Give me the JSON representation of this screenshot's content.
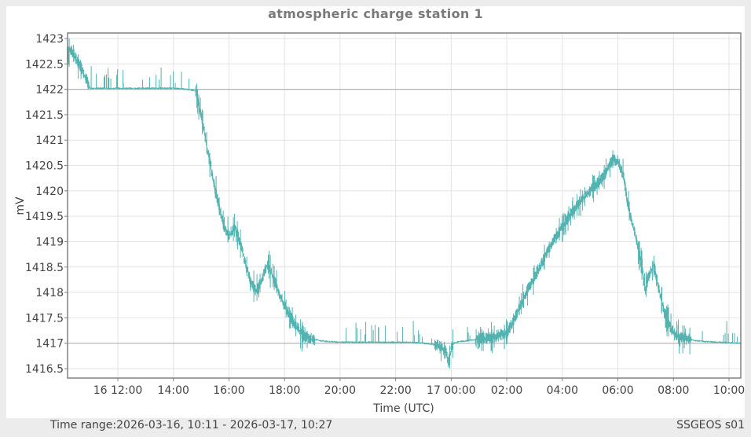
{
  "window": {
    "status_left": "Time range:2026-03-16, 10:11 - 2026-03-17, 10:27",
    "status_right": "SSGEOS s01"
  },
  "colors": {
    "series": "#52b3b0",
    "grid": "#e3e3e3",
    "axis": "#808080",
    "reference_line": "#b4b4b4",
    "title": "#7a7a7a"
  },
  "chart_data": {
    "type": "line",
    "title": "atmospheric charge station 1",
    "xlabel": "Time (UTC)",
    "ylabel": "mV",
    "ylim": [
      1416.3,
      1423.1
    ],
    "xlim_hours_from_0000_day16": [
      10.18,
      34.45
    ],
    "grid": true,
    "legend": null,
    "y_ticks": [
      "1423",
      "1422.5",
      "1422",
      "1421.5",
      "1421",
      "1420.5",
      "1420",
      "1419.5",
      "1419",
      "1418.5",
      "1418",
      "1417.5",
      "1417",
      "1416.5"
    ],
    "y_tick_values": [
      1423,
      1422.5,
      1422,
      1421.5,
      1421,
      1420.5,
      1420,
      1419.5,
      1419,
      1418.5,
      1418,
      1417.5,
      1417,
      1416.5
    ],
    "x_ticks": [
      "16 12:00",
      "14:00",
      "16:00",
      "18:00",
      "20:00",
      "22:00",
      "17 00:00",
      "02:00",
      "04:00",
      "06:00",
      "08:00",
      "10:00"
    ],
    "x_tick_hours": [
      12,
      14,
      16,
      18,
      20,
      22,
      24,
      26,
      28,
      30,
      32,
      34
    ],
    "reference_lines_y": [
      1422,
      1417
    ],
    "series": [
      {
        "name": "atmospheric charge station 1",
        "x_hours": [
          10.18,
          10.3,
          10.5,
          10.7,
          10.9,
          11.0,
          11.2,
          11.5,
          12.0,
          12.5,
          13.0,
          13.5,
          14.0,
          14.5,
          14.8,
          15.0,
          15.2,
          15.4,
          15.6,
          15.8,
          16.0,
          16.2,
          16.4,
          16.6,
          16.8,
          17.0,
          17.2,
          17.4,
          17.6,
          17.8,
          18.0,
          18.2,
          18.4,
          18.6,
          18.8,
          19.0,
          19.3,
          19.6,
          20.0,
          20.5,
          21.0,
          21.5,
          22.0,
          22.5,
          23.0,
          23.3,
          23.6,
          23.8,
          23.9,
          24.0,
          24.1,
          24.3,
          24.6,
          25.0,
          25.5,
          26.0,
          26.3,
          26.6,
          27.0,
          27.5,
          28.0,
          28.5,
          29.0,
          29.5,
          29.8,
          30.0,
          30.2,
          30.4,
          30.6,
          30.8,
          31.0,
          31.1,
          31.3,
          31.5,
          31.7,
          31.9,
          32.1,
          32.4,
          32.8,
          33.2,
          33.6,
          34.0,
          34.45
        ],
        "values": [
          1422.65,
          1422.8,
          1422.6,
          1422.4,
          1422.15,
          1422.02,
          1422.02,
          1422.02,
          1422.02,
          1422.02,
          1422.02,
          1422.02,
          1422.02,
          1422.0,
          1421.97,
          1421.5,
          1420.9,
          1420.3,
          1419.8,
          1419.35,
          1419.1,
          1419.3,
          1419.0,
          1418.55,
          1418.2,
          1418.0,
          1418.3,
          1418.55,
          1418.3,
          1418.0,
          1417.75,
          1417.55,
          1417.35,
          1417.2,
          1417.12,
          1417.08,
          1417.05,
          1417.03,
          1417.02,
          1417.02,
          1417.02,
          1417.02,
          1417.02,
          1417.02,
          1417.0,
          1416.98,
          1416.95,
          1416.85,
          1416.6,
          1416.9,
          1417.0,
          1417.03,
          1417.05,
          1417.08,
          1417.12,
          1417.2,
          1417.5,
          1417.9,
          1418.3,
          1418.85,
          1419.3,
          1419.7,
          1420.0,
          1420.3,
          1420.6,
          1420.6,
          1420.3,
          1419.6,
          1419.2,
          1418.7,
          1418.05,
          1418.3,
          1418.55,
          1418.0,
          1417.55,
          1417.3,
          1417.15,
          1417.1,
          1417.05,
          1417.03,
          1417.02,
          1417.01,
          1417.0
        ]
      }
    ]
  }
}
